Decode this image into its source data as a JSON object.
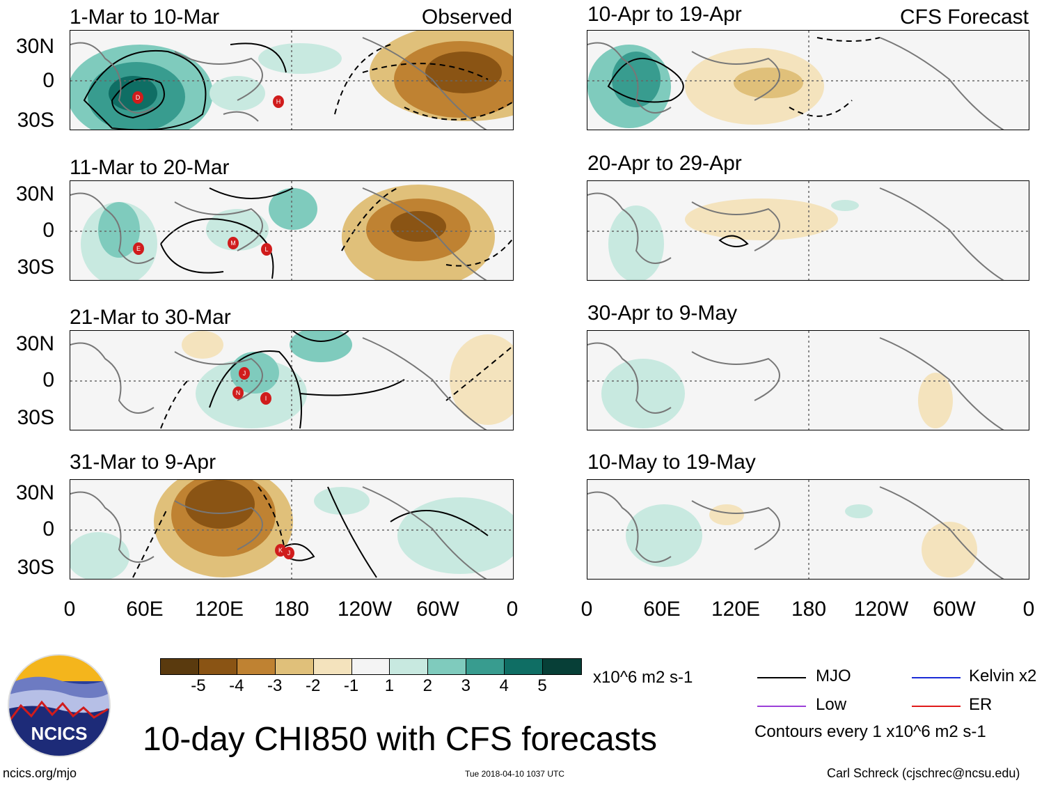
{
  "observed_label": "Observed",
  "forecast_label": "CFS Forecast",
  "lat_labels": [
    "30N",
    "0",
    "30S"
  ],
  "lon_labels": [
    "0",
    "60E",
    "120E",
    "180",
    "120W",
    "60W",
    "0"
  ],
  "panels": {
    "obs": [
      {
        "title": "1-Mar to 10-Mar",
        "storms": [
          "D",
          "H"
        ]
      },
      {
        "title": "11-Mar to 20-Mar",
        "storms": [
          "E",
          "M",
          "L"
        ]
      },
      {
        "title": "21-Mar to 30-Mar",
        "storms": [
          "J",
          "N",
          "I"
        ]
      },
      {
        "title": "31-Mar to 9-Apr",
        "storms": [
          "K",
          "J"
        ]
      }
    ],
    "fc": [
      {
        "title": "10-Apr to 19-Apr"
      },
      {
        "title": "20-Apr to 29-Apr"
      },
      {
        "title": "30-Apr to 9-May"
      },
      {
        "title": "10-May to 19-May"
      }
    ]
  },
  "colorbar": {
    "colors": [
      "#5a3a0e",
      "#8a5414",
      "#bf8232",
      "#e0c07a",
      "#f4e3bd",
      "#f4f4f4",
      "#c8e9e0",
      "#7fcbbd",
      "#389c8f",
      "#0f6e64",
      "#073f37"
    ],
    "ticks": [
      "-5",
      "-4",
      "-3",
      "-2",
      "-1",
      "1",
      "2",
      "3",
      "4",
      "5"
    ],
    "units": "x10^6 m2 s-1"
  },
  "legend": {
    "items": [
      {
        "label": "MJO",
        "color": "#000000"
      },
      {
        "label": "Kelvin x2",
        "color": "#1a2bd6"
      },
      {
        "label": "Low",
        "color": "#9b3fd8"
      },
      {
        "label": "ER",
        "color": "#e01a1a"
      }
    ],
    "note": "Contours every 1 x10^6 m2 s-1"
  },
  "logo_text": "NCICS",
  "main_title": "10-day CHI850 with CFS forecasts",
  "footer": {
    "url": "ncics.org/mjo",
    "timestamp": "Tue 2018-04-10 1037 UTC",
    "credit": "Carl Schreck (cjschrec@ncsu.edu)"
  }
}
